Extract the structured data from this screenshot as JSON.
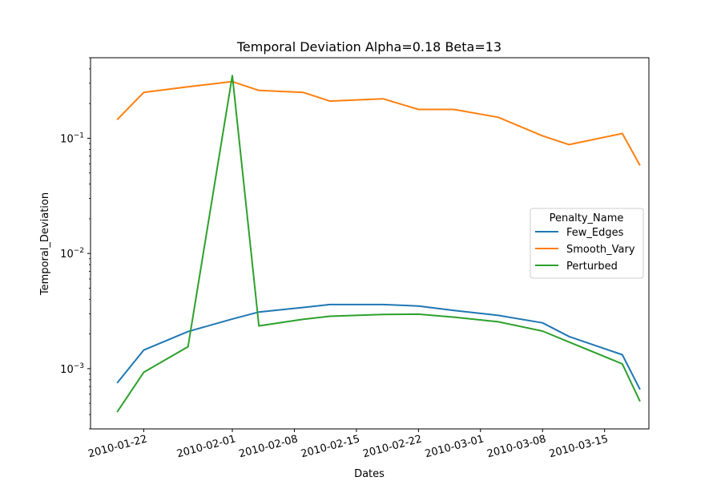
{
  "chart_data": {
    "type": "line",
    "title": "Temporal Deviation Alpha=0.18 Beta=13",
    "xlabel": "Dates",
    "ylabel": "Temporal_Deviation",
    "y_scale": "log",
    "ylim": [
      0.0003,
      0.5
    ],
    "xlim": [
      "2010-01-16",
      "2010-03-20"
    ],
    "x_ticks": [
      "2010-01-22",
      "2010-02-01",
      "2010-02-08",
      "2010-02-15",
      "2010-02-22",
      "2010-03-01",
      "2010-03-08",
      "2010-03-15"
    ],
    "y_ticks": [
      {
        "value": 0.001,
        "base": "10",
        "exp": "−3"
      },
      {
        "value": 0.01,
        "base": "10",
        "exp": "−2"
      },
      {
        "value": 0.1,
        "base": "10",
        "exp": "−1"
      }
    ],
    "grid": false,
    "legend": {
      "title": "Penalty_Name",
      "placement": "center-right"
    },
    "x": [
      "2010-01-19",
      "2010-01-22",
      "2010-01-27",
      "2010-02-01",
      "2010-02-04",
      "2010-02-09",
      "2010-02-12",
      "2010-02-18",
      "2010-02-22",
      "2010-02-26",
      "2010-03-03",
      "2010-03-08",
      "2010-03-11",
      "2010-03-17",
      "2010-03-19"
    ],
    "series": [
      {
        "name": "Few_Edges",
        "color": "#1f77b4",
        "values": [
          0.00075,
          0.00145,
          0.0021,
          0.0027,
          0.0031,
          0.0034,
          0.0036,
          0.0036,
          0.0035,
          0.0032,
          0.0029,
          0.0025,
          0.0019,
          0.00132,
          0.00066
        ]
      },
      {
        "name": "Smooth_Vary",
        "color": "#ff7f0e",
        "values": [
          0.145,
          0.25,
          0.28,
          0.31,
          0.26,
          0.25,
          0.21,
          0.22,
          0.178,
          0.178,
          0.152,
          0.105,
          0.088,
          0.11,
          0.058
        ]
      },
      {
        "name": "Perturbed",
        "color": "#2ca02c",
        "values": [
          0.00042,
          0.00093,
          0.00155,
          0.35,
          0.00235,
          0.00268,
          0.00285,
          0.00295,
          0.00297,
          0.0028,
          0.00255,
          0.00212,
          0.0017,
          0.0011,
          0.00052
        ]
      }
    ]
  }
}
